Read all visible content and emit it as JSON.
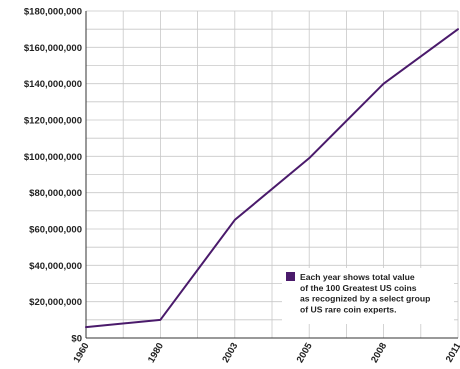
{
  "chart_data": {
    "type": "line",
    "categories": [
      "1960",
      "1980",
      "2003",
      "2005",
      "2008",
      "2011"
    ],
    "series": [
      {
        "values": [
          6000000,
          10000000,
          65000000,
          99000000,
          140000000,
          170000000
        ]
      }
    ],
    "y_tick_labels": [
      "$0",
      "$20,000,000",
      "$40,000,000",
      "$60,000,000",
      "$80,000,000",
      "$100,000,000",
      "$120,000,000",
      "$140,000,000",
      "$160,000,000",
      "$180,000,000"
    ],
    "ylim": [
      0,
      180000000
    ],
    "y_tick_step": 20000000,
    "y_minor_step": 10000000,
    "grid": true,
    "legend": {
      "placement": "bottom-right",
      "lines": [
        "Each year shows total value",
        "of the 100 Greatest US coins",
        "as recognized by a select group",
        "of US rare coin experts."
      ]
    },
    "colors": {
      "line": "#4a1a6b",
      "legend_swatch": "#4a1a6b",
      "grid": "#c8c8c8",
      "axis": "#333333"
    }
  }
}
